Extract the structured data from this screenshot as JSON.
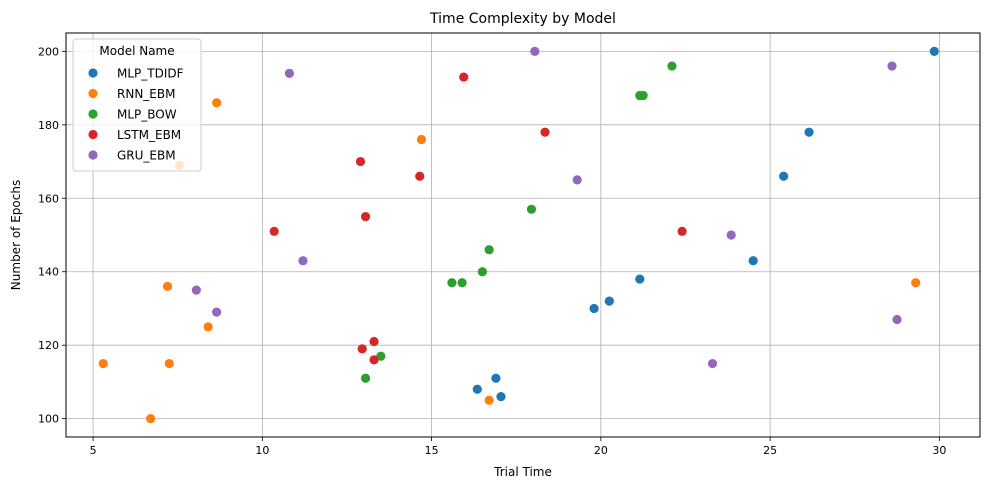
{
  "chart_data": {
    "type": "scatter",
    "title": "Time Complexity by Model",
    "xlabel": "Trial Time",
    "ylabel": "Number of Epochs",
    "xlim": [
      4.2,
      31.2
    ],
    "ylim": [
      95,
      205
    ],
    "xticks": [
      5,
      10,
      15,
      20,
      25,
      30
    ],
    "yticks": [
      100,
      120,
      140,
      160,
      180,
      200
    ],
    "grid": true,
    "legend": {
      "title": "Model Name",
      "position": "top-left"
    },
    "series": [
      {
        "name": "MLP_TDIDF",
        "color": "#1f77b4",
        "points": [
          [
            29.85,
            200
          ],
          [
            26.15,
            178
          ],
          [
            25.4,
            166
          ],
          [
            24.5,
            143
          ],
          [
            21.15,
            138
          ],
          [
            20.25,
            132
          ],
          [
            19.8,
            130
          ],
          [
            16.9,
            111
          ],
          [
            16.35,
            108
          ],
          [
            17.05,
            106
          ]
        ]
      },
      {
        "name": "RNN_EBM",
        "color": "#ff7f0e",
        "points": [
          [
            8.65,
            186
          ],
          [
            14.7,
            176
          ],
          [
            7.55,
            169
          ],
          [
            7.2,
            136
          ],
          [
            8.4,
            125
          ],
          [
            5.3,
            115
          ],
          [
            7.25,
            115
          ],
          [
            6.7,
            100
          ],
          [
            16.7,
            105
          ],
          [
            29.3,
            137
          ]
        ]
      },
      {
        "name": "MLP_BOW",
        "color": "#2ca02c",
        "points": [
          [
            22.1,
            196
          ],
          [
            21.15,
            188
          ],
          [
            21.25,
            188
          ],
          [
            17.95,
            157
          ],
          [
            16.7,
            146
          ],
          [
            16.5,
            140
          ],
          [
            15.6,
            137
          ],
          [
            15.9,
            137
          ],
          [
            13.5,
            117
          ],
          [
            13.05,
            111
          ]
        ]
      },
      {
        "name": "LSTM_EBM",
        "color": "#d62728",
        "points": [
          [
            15.95,
            193
          ],
          [
            18.35,
            178
          ],
          [
            12.9,
            170
          ],
          [
            14.65,
            166
          ],
          [
            13.05,
            155
          ],
          [
            10.35,
            151
          ],
          [
            22.4,
            151
          ],
          [
            13.3,
            121
          ],
          [
            12.95,
            119
          ],
          [
            13.3,
            116
          ]
        ]
      },
      {
        "name": "GRU_EBM",
        "color": "#9467bd",
        "points": [
          [
            18.05,
            200
          ],
          [
            10.8,
            194
          ],
          [
            28.6,
            196
          ],
          [
            19.3,
            165
          ],
          [
            23.85,
            150
          ],
          [
            11.2,
            143
          ],
          [
            8.05,
            135
          ],
          [
            8.65,
            129
          ],
          [
            28.75,
            127
          ],
          [
            23.3,
            115
          ]
        ]
      }
    ]
  }
}
